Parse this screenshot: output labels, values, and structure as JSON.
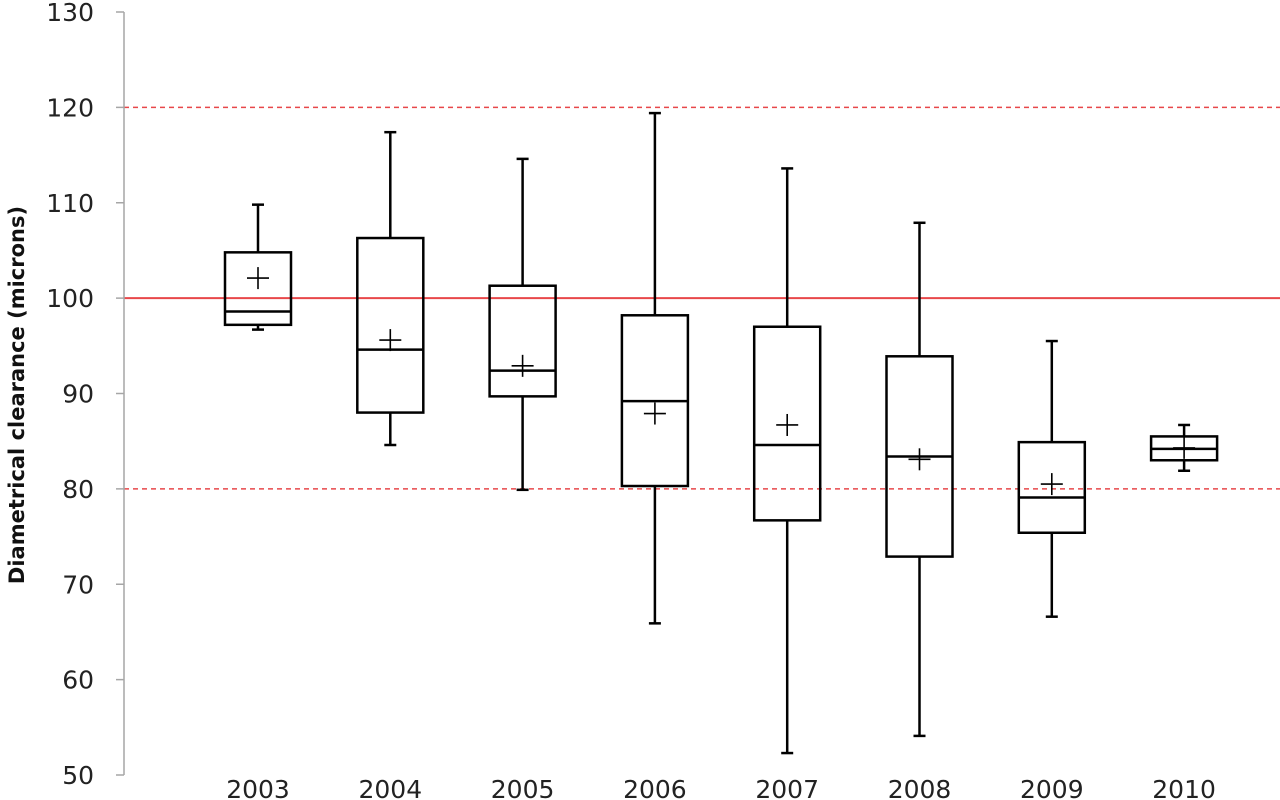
{
  "chart_data": {
    "type": "box",
    "title": "",
    "xlabel": "",
    "ylabel": "Diametrical clearance (microns)",
    "ylim": [
      50,
      130
    ],
    "yticks": [
      50,
      60,
      70,
      80,
      90,
      100,
      110,
      120,
      130
    ],
    "grid": false,
    "legend": "none",
    "categories": [
      "2003",
      "2004",
      "2005",
      "2006",
      "2007",
      "2008",
      "2009",
      "2010"
    ],
    "boxes": [
      {
        "category": "2003",
        "min": 96.7,
        "q1": 97.2,
        "median": 98.6,
        "q3": 104.8,
        "max": 109.8,
        "mean": 102.1
      },
      {
        "category": "2004",
        "min": 84.6,
        "q1": 88.0,
        "median": 94.6,
        "q3": 106.3,
        "max": 117.4,
        "mean": 95.6
      },
      {
        "category": "2005",
        "min": 79.9,
        "q1": 89.7,
        "median": 92.4,
        "q3": 101.3,
        "max": 114.6,
        "mean": 92.9
      },
      {
        "category": "2006",
        "min": 65.9,
        "q1": 80.3,
        "median": 89.2,
        "q3": 98.2,
        "max": 119.4,
        "mean": 87.9
      },
      {
        "category": "2007",
        "min": 52.3,
        "q1": 76.7,
        "median": 84.6,
        "q3": 97.0,
        "max": 113.6,
        "mean": 86.7
      },
      {
        "category": "2008",
        "min": 54.1,
        "q1": 72.9,
        "median": 83.4,
        "q3": 93.9,
        "max": 107.9,
        "mean": 83.1
      },
      {
        "category": "2009",
        "min": 66.6,
        "q1": 75.4,
        "median": 79.1,
        "q3": 84.9,
        "max": 95.5,
        "mean": 80.5
      },
      {
        "category": "2010",
        "min": 81.9,
        "q1": 83.0,
        "median": 84.2,
        "q3": 85.5,
        "max": 86.7,
        "mean": 84.3
      }
    ],
    "reference_lines": [
      {
        "value": 100,
        "style": "solid",
        "color": "#e8474a"
      },
      {
        "value": 120,
        "style": "dashed",
        "color": "#e8474a"
      },
      {
        "value": 80,
        "style": "dashed",
        "color": "#e8474a"
      }
    ],
    "colors": {
      "box": "#000000",
      "axis": "#a6a6a6",
      "reference": "#e8474a"
    }
  }
}
